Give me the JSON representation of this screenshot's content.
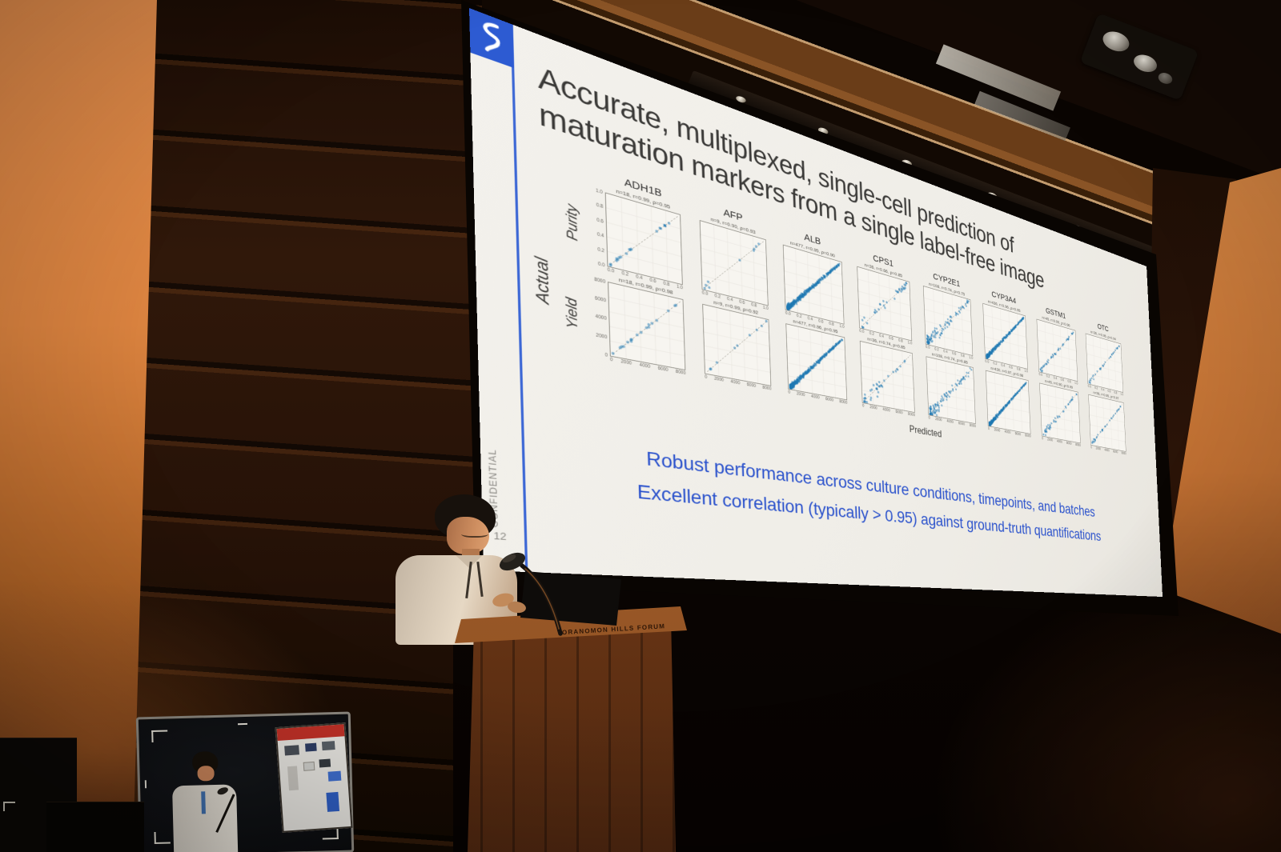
{
  "scene": {
    "podium_sign": "TORANOMON HILLS FORUM"
  },
  "slide": {
    "accent_color": "#2d5bd2",
    "bullet_color": "#2b52cc",
    "logo_icon": "ribbon-glyph",
    "title_line1": "Accurate, multiplexed, single-cell prediction of",
    "title_line2": "maturation markers from a single label-free image",
    "confidential_label": "CONFIDENTIAL",
    "page_number": "12",
    "bullets": [
      "Robust performance across culture conditions, timepoints, and batches",
      "Excellent correlation (typically > 0.95) against ground-truth quantifications"
    ]
  },
  "chart_data": {
    "type": "scatter",
    "grid": "2 rows x 8 columns",
    "xlabel": "Predicted",
    "ylabel": "Actual",
    "row_labels": [
      "Purity",
      "Yield"
    ],
    "columns": [
      "ADH1B",
      "AFP",
      "ALB",
      "CPS1",
      "CYP2E1",
      "CYP3A4",
      "GSTM1",
      "OTC"
    ],
    "purity_axis": {
      "range": [
        0.0,
        1.0
      ],
      "ticks": [
        "0.0",
        "0.2",
        "0.4",
        "0.6",
        "0.8",
        "1.0"
      ]
    },
    "yield_axis": {
      "range": [
        0,
        8000
      ],
      "ticks": [
        "0",
        "2000",
        "4000",
        "6000",
        "8000"
      ]
    },
    "identity_line": true,
    "point_color": "#2079b4",
    "plots": [
      {
        "marker": "ADH1B",
        "row": "Purity",
        "n": 18,
        "r": 0.99,
        "rho": 0.95,
        "label": "n=18, r=0.99, ρ=0.95"
      },
      {
        "marker": "AFP",
        "row": "Purity",
        "n": 9,
        "r": 0.9,
        "rho": 0.93,
        "label": "n=9, r=0.90, ρ=0.93"
      },
      {
        "marker": "ALB",
        "row": "Purity",
        "n": 477,
        "r": 0.95,
        "rho": 0.9,
        "label": "n=477, r=0.95, ρ=0.90"
      },
      {
        "marker": "CPS1",
        "row": "Purity",
        "n": 36,
        "r": 0.66,
        "rho": 0.85,
        "label": "n=36, r=0.66, ρ=0.85"
      },
      {
        "marker": "CYP2E1",
        "row": "Purity",
        "n": 108,
        "r": 0.74,
        "rho": 0.75,
        "label": "n=108, r=0.74, ρ=0.75"
      },
      {
        "marker": "CYP3A4",
        "row": "Purity",
        "n": 436,
        "r": 0.96,
        "rho": 0.95,
        "label": "n=436, r=0.96, ρ=0.95"
      },
      {
        "marker": "GSTM1",
        "row": "Purity",
        "n": 45,
        "r": 0.93,
        "rho": 0.96,
        "label": "n=45, r=0.93, ρ=0.96"
      },
      {
        "marker": "OTC",
        "row": "Purity",
        "n": 36,
        "r": 0.95,
        "rho": 0.94,
        "label": "n=36, r=0.95, ρ=0.94"
      },
      {
        "marker": "ADH1B",
        "row": "Yield",
        "n": 18,
        "r": 0.99,
        "rho": 0.98,
        "label": "n=18, r=0.99, ρ=0.98"
      },
      {
        "marker": "AFP",
        "row": "Yield",
        "n": 9,
        "r": 0.99,
        "rho": 0.92,
        "label": "n=9, r=0.99, ρ=0.92"
      },
      {
        "marker": "ALB",
        "row": "Yield",
        "n": 477,
        "r": 0.96,
        "rho": 0.95,
        "label": "n=477, r=0.96, ρ=0.95"
      },
      {
        "marker": "CPS1",
        "row": "Yield",
        "n": 36,
        "r": 0.74,
        "rho": 0.85,
        "label": "n=36, r=0.74, ρ=0.85"
      },
      {
        "marker": "CYP2E1",
        "row": "Yield",
        "n": 108,
        "r": 0.74,
        "rho": 0.85,
        "label": "n=108, r=0.74, ρ=0.85"
      },
      {
        "marker": "CYP3A4",
        "row": "Yield",
        "n": 430,
        "r": 0.97,
        "rho": 0.98,
        "label": "n=430, r=0.97, ρ=0.98"
      },
      {
        "marker": "GSTM1",
        "row": "Yield",
        "n": 45,
        "r": 0.9,
        "rho": 0.99,
        "label": "n=45, r=0.90, ρ=0.99"
      },
      {
        "marker": "OTC",
        "row": "Yield",
        "n": 36,
        "r": 0.95,
        "rho": 0.97,
        "label": "n=36, r=0.95, ρ=0.97"
      }
    ]
  }
}
